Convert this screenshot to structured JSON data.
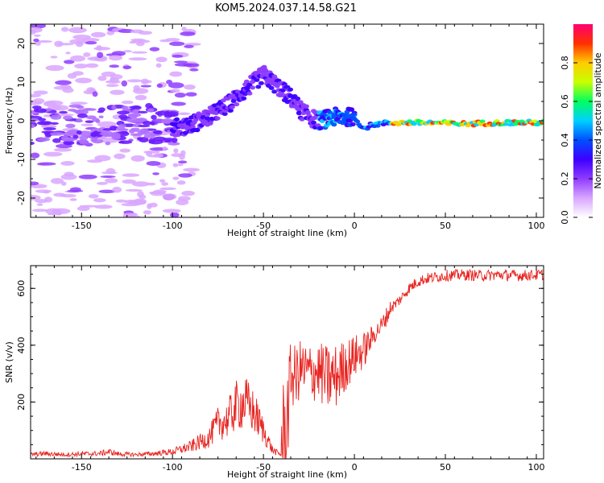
{
  "title": "KOM5.2024.037.14.58.G21",
  "chart_data": [
    {
      "type": "heatmap",
      "xlabel": "Height of straight line (km)",
      "ylabel": "Frequency (Hz)",
      "xlim": [
        -178,
        104
      ],
      "ylim": [
        -25,
        25
      ],
      "x_ticks": [
        -150,
        -100,
        -50,
        0,
        50,
        100
      ],
      "y_ticks": [
        -20,
        -10,
        0,
        10,
        20
      ],
      "colorbar": {
        "label": "Normalized spectral amplitude",
        "range": [
          0,
          1
        ],
        "ticks": [
          0.0,
          0.2,
          0.4,
          0.6,
          0.8
        ],
        "colormap": [
          "#ffffff",
          "#d9a6ff",
          "#8f3cff",
          "#3c00ff",
          "#0050ff",
          "#00d0ff",
          "#00ff60",
          "#c8ff00",
          "#ffcc00",
          "#ff3000",
          "#ff0070"
        ]
      },
      "trace": {
        "x": [
          -100,
          -90,
          -80,
          -70,
          -60,
          -55,
          -50,
          -45,
          -40,
          -35,
          -30,
          -25,
          -20,
          -10,
          0,
          5,
          10,
          20,
          40,
          60,
          80,
          104
        ],
        "y": [
          -2,
          -1,
          1,
          4,
          8,
          10,
          12,
          10,
          8,
          6,
          3,
          1,
          0,
          1,
          1,
          -2,
          -1,
          -0.5,
          -0.5,
          -0.8,
          -0.5,
          -0.5
        ]
      }
    },
    {
      "type": "line",
      "xlabel": "Height of straight line (km)",
      "ylabel": "SNR (v/v)",
      "xlim": [
        -178,
        104
      ],
      "ylim": [
        0,
        680
      ],
      "x_ticks": [
        -150,
        -100,
        -50,
        0,
        50,
        100
      ],
      "y_ticks": [
        200,
        400,
        600
      ],
      "color": "#e8231f",
      "series": [
        {
          "x": [
            -178,
            -170,
            -160,
            -150,
            -140,
            -135,
            -130,
            -120,
            -110,
            -100,
            -90,
            -80,
            -75,
            -70,
            -65,
            -60,
            -55,
            -50,
            -45,
            -40,
            -38,
            -35,
            -32,
            -30,
            -25,
            -20,
            -15,
            -10,
            -5,
            0,
            5,
            10,
            15,
            20,
            25,
            30,
            35,
            40,
            50,
            60,
            70,
            80,
            90,
            104
          ],
          "y": [
            12,
            15,
            12,
            14,
            15,
            20,
            14,
            12,
            15,
            20,
            35,
            60,
            100,
            110,
            150,
            160,
            130,
            80,
            25,
            10,
            60,
            300,
            280,
            320,
            300,
            310,
            280,
            290,
            330,
            360,
            380,
            430,
            470,
            530,
            560,
            600,
            625,
            635,
            645,
            648,
            645,
            648,
            645,
            648
          ]
        }
      ]
    }
  ]
}
